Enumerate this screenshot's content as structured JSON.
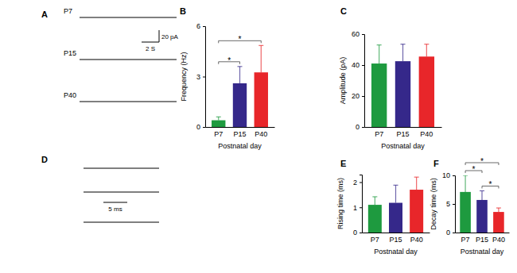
{
  "chart_data": [
    {
      "type": "bar",
      "title": "B",
      "x_label": "Postnatal day",
      "y_label": "Frequency (Hz)",
      "categories": [
        "P7",
        "P15",
        "P40"
      ],
      "values": [
        0.4,
        2.6,
        3.25
      ],
      "errors": [
        0.2,
        1.0,
        1.6
      ],
      "colors": [
        "#1e9a3f",
        "#35288a",
        "#e8262a"
      ],
      "ylim": [
        0,
        6
      ],
      "yticks": [
        0,
        3,
        6
      ],
      "annotations": [
        {
          "text": "*",
          "between": [
            "P7",
            "P15"
          ]
        },
        {
          "text": "*",
          "between": [
            "P7",
            "P40"
          ]
        }
      ]
    },
    {
      "type": "bar",
      "title": "C",
      "x_label": "Postnatal day",
      "y_label": "Amplitude (pA)",
      "categories": [
        "P7",
        "P15",
        "P40"
      ],
      "values": [
        41,
        42.5,
        45.5
      ],
      "errors": [
        12,
        11,
        8
      ],
      "colors": [
        "#1e9a3f",
        "#35288a",
        "#e8262a"
      ],
      "ylim": [
        0,
        60
      ],
      "yticks": [
        0,
        20,
        40,
        60
      ]
    },
    {
      "type": "bar",
      "title": "E",
      "x_label": "Postnatal day",
      "y_label": "Rising time (ms)",
      "categories": [
        "P7",
        "P15",
        "P40"
      ],
      "values": [
        1.1,
        1.18,
        1.7
      ],
      "errors": [
        0.32,
        0.7,
        0.5
      ],
      "colors": [
        "#1e9a3f",
        "#35288a",
        "#e8262a"
      ],
      "ylim": [
        0,
        2.3
      ],
      "yticks": [
        0,
        1,
        2
      ]
    },
    {
      "type": "bar",
      "title": "F",
      "x_label": "Postnatal day",
      "y_label": "Decay time (ms)",
      "categories": [
        "P7",
        "P15",
        "P40"
      ],
      "values": [
        7.1,
        5.7,
        3.6
      ],
      "errors": [
        2.9,
        1.6,
        0.7
      ],
      "colors": [
        "#1e9a3f",
        "#35288a",
        "#e8262a"
      ],
      "ylim": [
        0,
        10
      ],
      "yticks": [
        0,
        5,
        10
      ],
      "annotations": [
        {
          "text": "*",
          "between": [
            "P7",
            "P15"
          ]
        },
        {
          "text": "*",
          "between": [
            "P15",
            "P40"
          ]
        },
        {
          "text": "*",
          "between": [
            "P7",
            "P40"
          ]
        }
      ]
    }
  ],
  "trace_panels": [
    {
      "title": "A",
      "labels": [
        "P7",
        "P15",
        "P40"
      ],
      "scale_bar": [
        "20 pA",
        "2 S"
      ]
    },
    {
      "title": "D",
      "scale_bar": [
        "5 ms"
      ]
    }
  ]
}
